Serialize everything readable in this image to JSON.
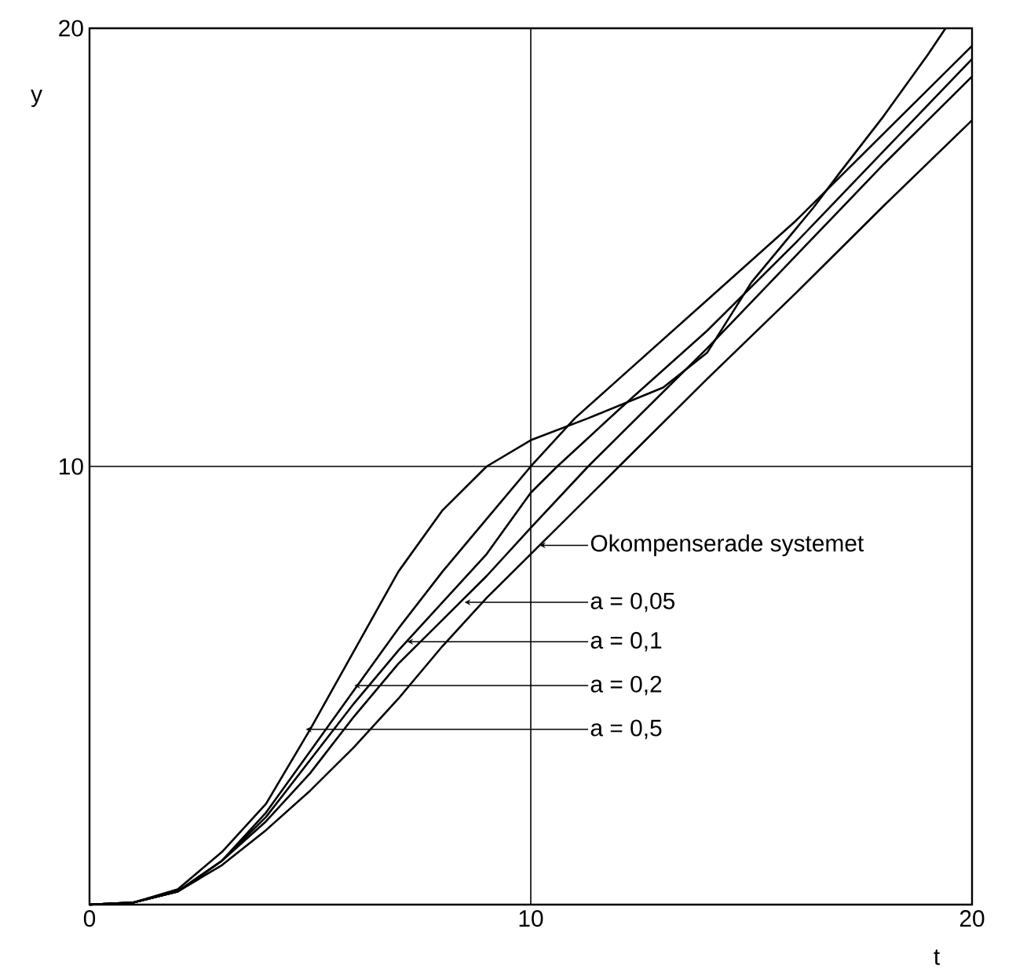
{
  "chart_data": {
    "type": "line",
    "xlabel": "t",
    "ylabel": "y",
    "xlim": [
      0,
      20
    ],
    "ylim": [
      0,
      20
    ],
    "xticks": [
      0,
      10,
      20
    ],
    "yticks": [
      {
        "value": 0,
        "label": null
      },
      10,
      20
    ],
    "grid": true,
    "marker": "none",
    "line_style": "solid",
    "series": [
      {
        "color": "#000000",
        "x": [
          0,
          1,
          2,
          3,
          4,
          5,
          6,
          7,
          8,
          9,
          10,
          12,
          14,
          16,
          18,
          20
        ],
        "values": [
          0,
          0.05,
          0.3,
          0.9,
          1.7,
          2.6,
          3.6,
          4.7,
          5.9,
          7.0,
          8.0,
          10.0,
          12.0,
          13.95,
          15.95,
          17.9
        ]
      },
      {
        "color": "#000000",
        "x": [
          0,
          1,
          2,
          3,
          4,
          5,
          6,
          7,
          8,
          9,
          10,
          11.3,
          12,
          14,
          16,
          18,
          20
        ],
        "values": [
          0,
          0.05,
          0.3,
          1.0,
          1.9,
          3.0,
          4.3,
          5.5,
          6.5,
          7.5,
          8.6,
          10.0,
          10.7,
          12.7,
          14.8,
          16.9,
          18.9
        ]
      },
      {
        "color": "#000000",
        "x": [
          0,
          1,
          2,
          3,
          4,
          5,
          6,
          7,
          8,
          9,
          10,
          10.6,
          12,
          14,
          16,
          18,
          20
        ],
        "values": [
          0,
          0.05,
          0.3,
          1.0,
          2.0,
          3.3,
          4.6,
          5.8,
          6.9,
          8.0,
          9.4,
          10.0,
          11.3,
          13.1,
          15.1,
          17.2,
          19.3
        ]
      },
      {
        "color": "#000000",
        "x": [
          0,
          1,
          2,
          3,
          4,
          5,
          6,
          7,
          8,
          9,
          10,
          11,
          12,
          14,
          16,
          18,
          20
        ],
        "values": [
          0,
          0.05,
          0.3,
          1.0,
          2.1,
          3.5,
          4.9,
          6.3,
          7.6,
          8.8,
          10.0,
          11.1,
          12.0,
          13.8,
          15.6,
          17.6,
          19.6
        ]
      },
      {
        "color": "#000000",
        "x": [
          0,
          1,
          2,
          3,
          4,
          5,
          6,
          7,
          8,
          9,
          10,
          11.3,
          13,
          14,
          15,
          16.4,
          17,
          18,
          19,
          19.4
        ],
        "values": [
          0,
          0.05,
          0.35,
          1.2,
          2.3,
          4.0,
          5.8,
          7.6,
          9.0,
          10.0,
          10.6,
          11.1,
          11.8,
          12.6,
          14.2,
          15.9,
          16.7,
          18.0,
          19.4,
          20
        ]
      }
    ],
    "annotations": [
      {
        "text": "Okompenserade systemet",
        "x": 10.2,
        "y": 8.2
      },
      {
        "text": "a = 0,05",
        "x": 8.5,
        "y": 6.9
      },
      {
        "text": "a = 0,1",
        "x": 7.2,
        "y": 6.0
      },
      {
        "text": "a = 0,2",
        "x": 6.0,
        "y": 5.0
      },
      {
        "text": "a = 0,5",
        "x": 4.9,
        "y": 4.0
      }
    ]
  }
}
